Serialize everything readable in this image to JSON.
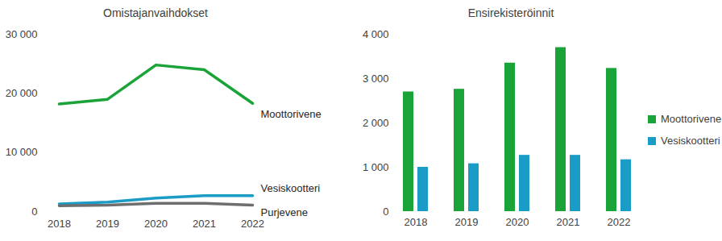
{
  "chart_data": [
    {
      "type": "line",
      "title": "Omistajanvaihdokset",
      "categories": [
        "2018",
        "2019",
        "2020",
        "2021",
        "2022"
      ],
      "series": [
        {
          "name": "Moottorivene",
          "color": "#1aa339",
          "values": [
            18200,
            19000,
            24800,
            24000,
            18300
          ]
        },
        {
          "name": "Vesiskootteri",
          "color": "#1b9cc6",
          "values": [
            1300,
            1600,
            2300,
            2700,
            2700
          ]
        },
        {
          "name": "Purjevene",
          "color": "#6e6e6e",
          "values": [
            1000,
            1100,
            1400,
            1400,
            1100
          ]
        }
      ],
      "ylim": [
        0,
        30000
      ],
      "yticks": [
        0,
        {
          "value": 10000,
          "label": "10 000"
        },
        {
          "value": 20000,
          "label": "20 000"
        },
        {
          "value": 30000,
          "label": "30 000"
        }
      ],
      "grid": false
    },
    {
      "type": "bar",
      "title": "Ensirekisteröinnit",
      "categories": [
        "2018",
        "2019",
        "2020",
        "2021",
        "2022"
      ],
      "series": [
        {
          "name": "Moottorivene",
          "color": "#1aa339",
          "values": [
            2700,
            2760,
            3350,
            3700,
            3230
          ]
        },
        {
          "name": "Vesiskootteri",
          "color": "#1b9cc6",
          "values": [
            1000,
            1080,
            1270,
            1270,
            1170
          ]
        }
      ],
      "ylim": [
        0,
        4000
      ],
      "yticks": [
        0,
        {
          "value": 1000,
          "label": "1 000"
        },
        {
          "value": 2000,
          "label": "2 000"
        },
        {
          "value": 3000,
          "label": "3 000"
        },
        {
          "value": 4000,
          "label": "4 000"
        }
      ],
      "grid": false,
      "legend": "right"
    }
  ]
}
